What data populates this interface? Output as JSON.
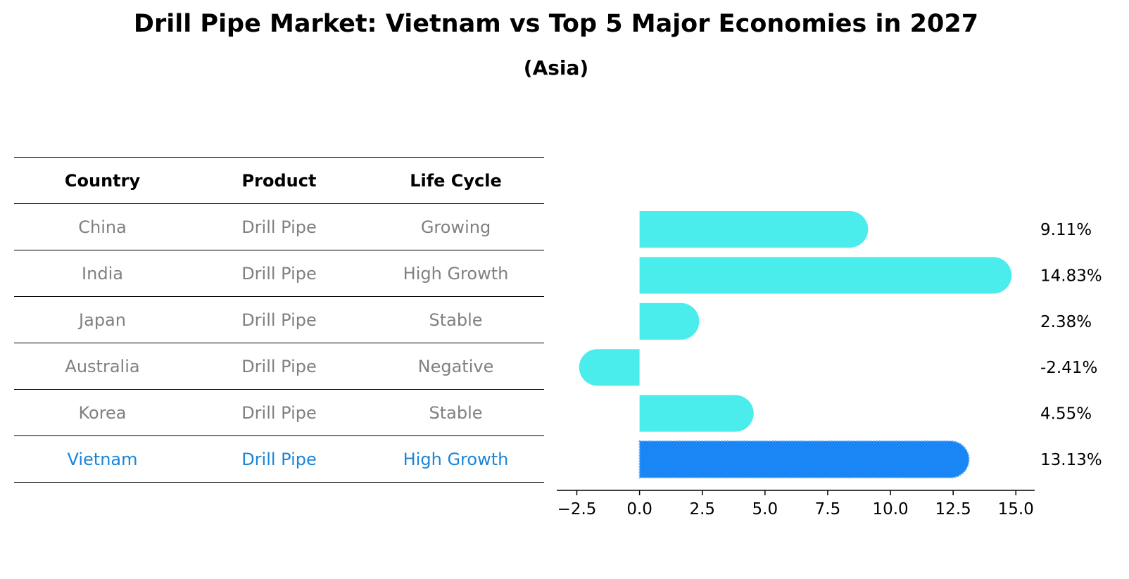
{
  "title": "Drill Pipe Market: Vietnam vs Top 5 Major Economies in 2027",
  "subtitle": "(Asia)",
  "table": {
    "headers": [
      "Country",
      "Product",
      "Life Cycle"
    ],
    "rows": [
      [
        "China",
        "Drill Pipe",
        "Growing"
      ],
      [
        "India",
        "Drill Pipe",
        "High Growth"
      ],
      [
        "Japan",
        "Drill Pipe",
        "Stable"
      ],
      [
        "Australia",
        "Drill Pipe",
        "Negative"
      ],
      [
        "Korea",
        "Drill Pipe",
        "Stable"
      ],
      [
        "Vietnam",
        "Drill Pipe",
        "High Growth"
      ]
    ],
    "highlight_row": 5
  },
  "colors": {
    "bar": "#4aecec",
    "highlight_bar": "#1a85f5",
    "highlight_text": "#1a85d8",
    "muted_text": "#808080"
  },
  "chart_data": {
    "type": "bar",
    "orientation": "horizontal",
    "categories": [
      "China",
      "India",
      "Japan",
      "Australia",
      "Korea",
      "Vietnam"
    ],
    "values": [
      9.11,
      14.83,
      2.38,
      -2.41,
      4.55,
      13.13
    ],
    "value_labels": [
      "9.11%",
      "14.83%",
      "2.38%",
      "-2.41%",
      "4.55%",
      "13.13%"
    ],
    "highlight_index": 5,
    "xlim": [
      -3.3,
      15.75
    ],
    "xticks": [
      -2.5,
      0.0,
      2.5,
      5.0,
      7.5,
      10.0,
      12.5,
      15.0
    ],
    "xtick_labels": [
      "−2.5",
      "0.0",
      "2.5",
      "5.0",
      "7.5",
      "10.0",
      "12.5",
      "15.0"
    ],
    "xlabel": "",
    "ylabel": "",
    "grid": false
  }
}
